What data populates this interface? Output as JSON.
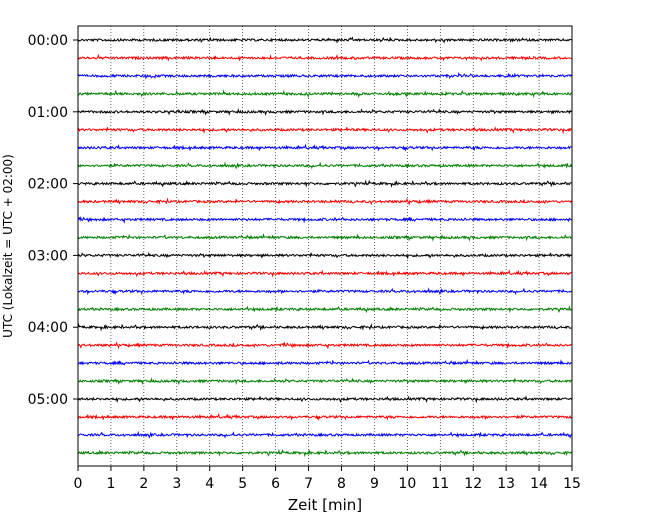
{
  "chart_data": {
    "type": "line",
    "title": "",
    "xlabel": "Zeit  [min]",
    "ylabel": "UTC (Lokalzeit = UTC + 02:00)",
    "xlim": [
      0,
      15
    ],
    "x_ticks": [
      "0",
      "1",
      "2",
      "3",
      "4",
      "5",
      "6",
      "7",
      "8",
      "9",
      "10",
      "11",
      "12",
      "13",
      "14",
      "15"
    ],
    "y_ticks": [
      "00:00",
      "01:00",
      "02:00",
      "03:00",
      "04:00",
      "05:00"
    ],
    "row_interval_min": 15,
    "rows": 24,
    "trace_colors": [
      "#000000",
      "#ff0000",
      "#0000ff",
      "#008000"
    ],
    "grid": "vertical dotted lines at each minute",
    "legend": "none"
  }
}
